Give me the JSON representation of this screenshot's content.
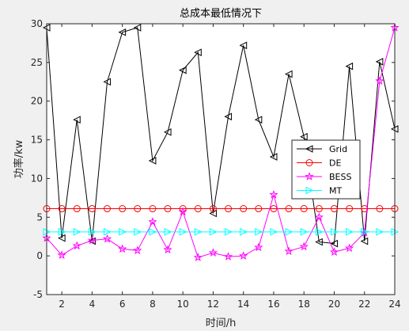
{
  "chart_data": {
    "type": "line",
    "title": "总成本最低情况下",
    "xlabel": "时间/h",
    "ylabel": "功率/kw",
    "xlim": [
      1,
      24
    ],
    "ylim": [
      -5,
      30
    ],
    "xticks": [
      2,
      4,
      6,
      8,
      10,
      12,
      14,
      16,
      18,
      20,
      22,
      24
    ],
    "yticks": [
      -5,
      0,
      5,
      10,
      15,
      20,
      25,
      30
    ],
    "grid": false,
    "legend_position": "inside-right",
    "x": [
      1,
      2,
      3,
      4,
      5,
      6,
      7,
      8,
      9,
      10,
      11,
      12,
      13,
      14,
      15,
      16,
      17,
      18,
      19,
      20,
      21,
      22,
      23,
      24
    ],
    "series": [
      {
        "name": "Grid",
        "color": "#000000",
        "marker": "triangle-left",
        "values": [
          29.5,
          2.3,
          17.6,
          1.9,
          22.5,
          28.9,
          29.5,
          12.3,
          16.0,
          24.0,
          26.3,
          5.5,
          18.0,
          27.2,
          17.6,
          12.8,
          23.5,
          15.4,
          1.8,
          1.6,
          24.5,
          1.9,
          25.1,
          16.4
        ]
      },
      {
        "name": "DE",
        "color": "#ff0000",
        "marker": "circle",
        "values": [
          6.1,
          6.1,
          6.1,
          6.1,
          6.1,
          6.1,
          6.1,
          6.1,
          6.1,
          6.1,
          6.1,
          6.1,
          6.1,
          6.1,
          6.1,
          6.1,
          6.1,
          6.1,
          6.1,
          6.1,
          6.1,
          6.1,
          6.1,
          6.1
        ]
      },
      {
        "name": "BESS",
        "color": "#ff00ff",
        "marker": "star",
        "values": [
          2.3,
          0.1,
          1.3,
          2.0,
          2.2,
          0.9,
          0.7,
          4.4,
          0.8,
          5.7,
          -0.2,
          0.4,
          -0.1,
          0.0,
          1.1,
          7.9,
          0.6,
          1.2,
          5.0,
          0.5,
          1.0,
          3.0,
          22.6,
          29.5
        ]
      },
      {
        "name": "MT",
        "color": "#00ffff",
        "marker": "triangle-right",
        "values": [
          3.1,
          3.1,
          3.1,
          3.1,
          3.1,
          3.1,
          3.1,
          3.1,
          3.1,
          3.1,
          3.1,
          3.1,
          3.1,
          3.1,
          3.1,
          3.1,
          3.1,
          3.1,
          3.1,
          3.1,
          3.1,
          3.1,
          3.1,
          3.1
        ]
      }
    ]
  }
}
